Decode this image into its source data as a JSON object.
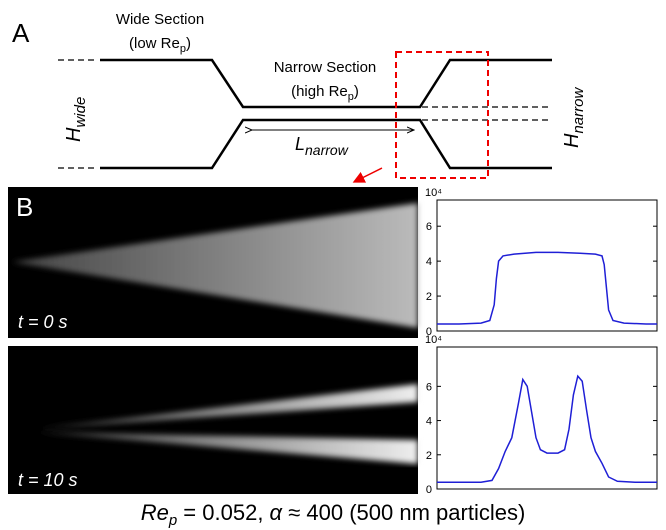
{
  "panel_a": {
    "label": "A",
    "wide": {
      "line1": "Wide Section",
      "line2_pre": "(low Re",
      "line2_sub": "p",
      "line2_post": ")"
    },
    "narrow": {
      "line1": "Narrow Section",
      "line2_pre": "(high Re",
      "line2_sub": "p",
      "line2_post": ")"
    },
    "h_wide": {
      "main": "H",
      "sub": "wide"
    },
    "h_narrow": {
      "main": "H",
      "sub": "narrow"
    },
    "l_narrow": {
      "main": "L",
      "sub": "narrow"
    }
  },
  "panel_b": {
    "label": "B",
    "time_0": "t = 0 s",
    "time_10": "t = 10 s"
  },
  "caption": {
    "re": "Re",
    "sub": "p",
    "mid": " = 0.052, ",
    "alpha": "α",
    "rest": " ≈ 400 (500 nm particles)"
  },
  "chart_data": [
    {
      "type": "line",
      "color": "#1f1fd6",
      "y_multiplier": "10⁴",
      "xlim": [
        0,
        100
      ],
      "ylim": [
        0,
        7.5
      ],
      "yticks": [
        0,
        2,
        4,
        6
      ],
      "x": [
        0,
        10,
        20,
        24,
        26,
        27,
        28,
        30,
        35,
        45,
        55,
        65,
        72,
        75,
        76,
        77,
        78,
        80,
        85,
        95,
        100
      ],
      "values": [
        0.4,
        0.4,
        0.45,
        0.6,
        1.5,
        3,
        4,
        4.3,
        4.4,
        4.5,
        4.5,
        4.45,
        4.4,
        4.3,
        3.8,
        2.5,
        1.2,
        0.6,
        0.45,
        0.4,
        0.4
      ]
    },
    {
      "type": "line",
      "color": "#1f1fd6",
      "y_multiplier": "10⁴",
      "xlim": [
        0,
        100
      ],
      "ylim": [
        0,
        8.3
      ],
      "yticks": [
        0,
        2,
        4,
        6
      ],
      "x": [
        0,
        10,
        20,
        25,
        28,
        31,
        34,
        37,
        39,
        41,
        43,
        45,
        47,
        50,
        55,
        58,
        60,
        62,
        64,
        66,
        68,
        70,
        72,
        75,
        78,
        82,
        90,
        100
      ],
      "values": [
        0.4,
        0.4,
        0.4,
        0.5,
        1.2,
        2.2,
        3.0,
        5.0,
        6.4,
        6.0,
        4.5,
        3.0,
        2.3,
        2.1,
        2.1,
        2.3,
        3.5,
        5.5,
        6.6,
        6.3,
        4.6,
        3.0,
        2.2,
        1.5,
        0.7,
        0.45,
        0.4,
        0.4
      ]
    }
  ]
}
